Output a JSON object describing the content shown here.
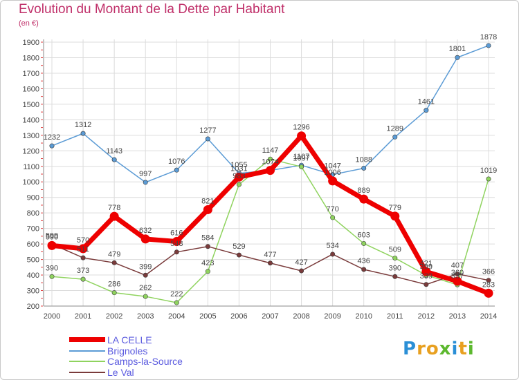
{
  "header": {
    "title": "Evolution du Montant de la Dette par Habitant",
    "unit": "(en €)"
  },
  "brand": {
    "text": "Proxiti",
    "colors": [
      "#2a8fd6",
      "#e8a020",
      "#e8a020",
      "#5cb82e",
      "#2a8fd6",
      "#e8a020",
      "#5cb82e"
    ]
  },
  "chart_data": {
    "type": "line",
    "title": "Evolution du Montant de la Dette par Habitant",
    "ylabel": "(en €)",
    "xlabel": "",
    "x": [
      2000,
      2001,
      2002,
      2003,
      2004,
      2005,
      2006,
      2007,
      2008,
      2009,
      2010,
      2011,
      2012,
      2013,
      2014
    ],
    "ylim": [
      200,
      1900
    ],
    "yticks": [
      200,
      300,
      400,
      500,
      600,
      700,
      800,
      900,
      1000,
      1100,
      1200,
      1300,
      1400,
      1500,
      1600,
      1700,
      1800,
      1900
    ],
    "grid": true,
    "legend_position": "bottom-left",
    "series": [
      {
        "name": "Brignoles",
        "color": "#5b9bd5",
        "values": [
          1232,
          1312,
          1143,
          997,
          1076,
          1277,
          1055,
          1074,
          1107,
          1047,
          1088,
          1289,
          1461,
          1801,
          1878
        ]
      },
      {
        "name": "Camps-la-Source",
        "color": "#8fd35e",
        "values": [
          390,
          373,
          286,
          262,
          222,
          423,
          983,
          1147,
          1097,
          770,
          603,
          509,
          399,
          337,
          1019
        ]
      },
      {
        "name": "Le Val",
        "color": "#7a3b3b",
        "values": [
          599,
          511,
          479,
          399,
          548,
          584,
          529,
          477,
          427,
          534,
          436,
          390,
          339,
          407,
          366
        ]
      },
      {
        "name": "LA CELLE",
        "color": "#ee0000",
        "values": [
          590,
          570,
          778,
          632,
          616,
          821,
          1031,
          1074,
          1296,
          1006,
          889,
          779,
          421,
          360,
          283
        ]
      }
    ]
  }
}
